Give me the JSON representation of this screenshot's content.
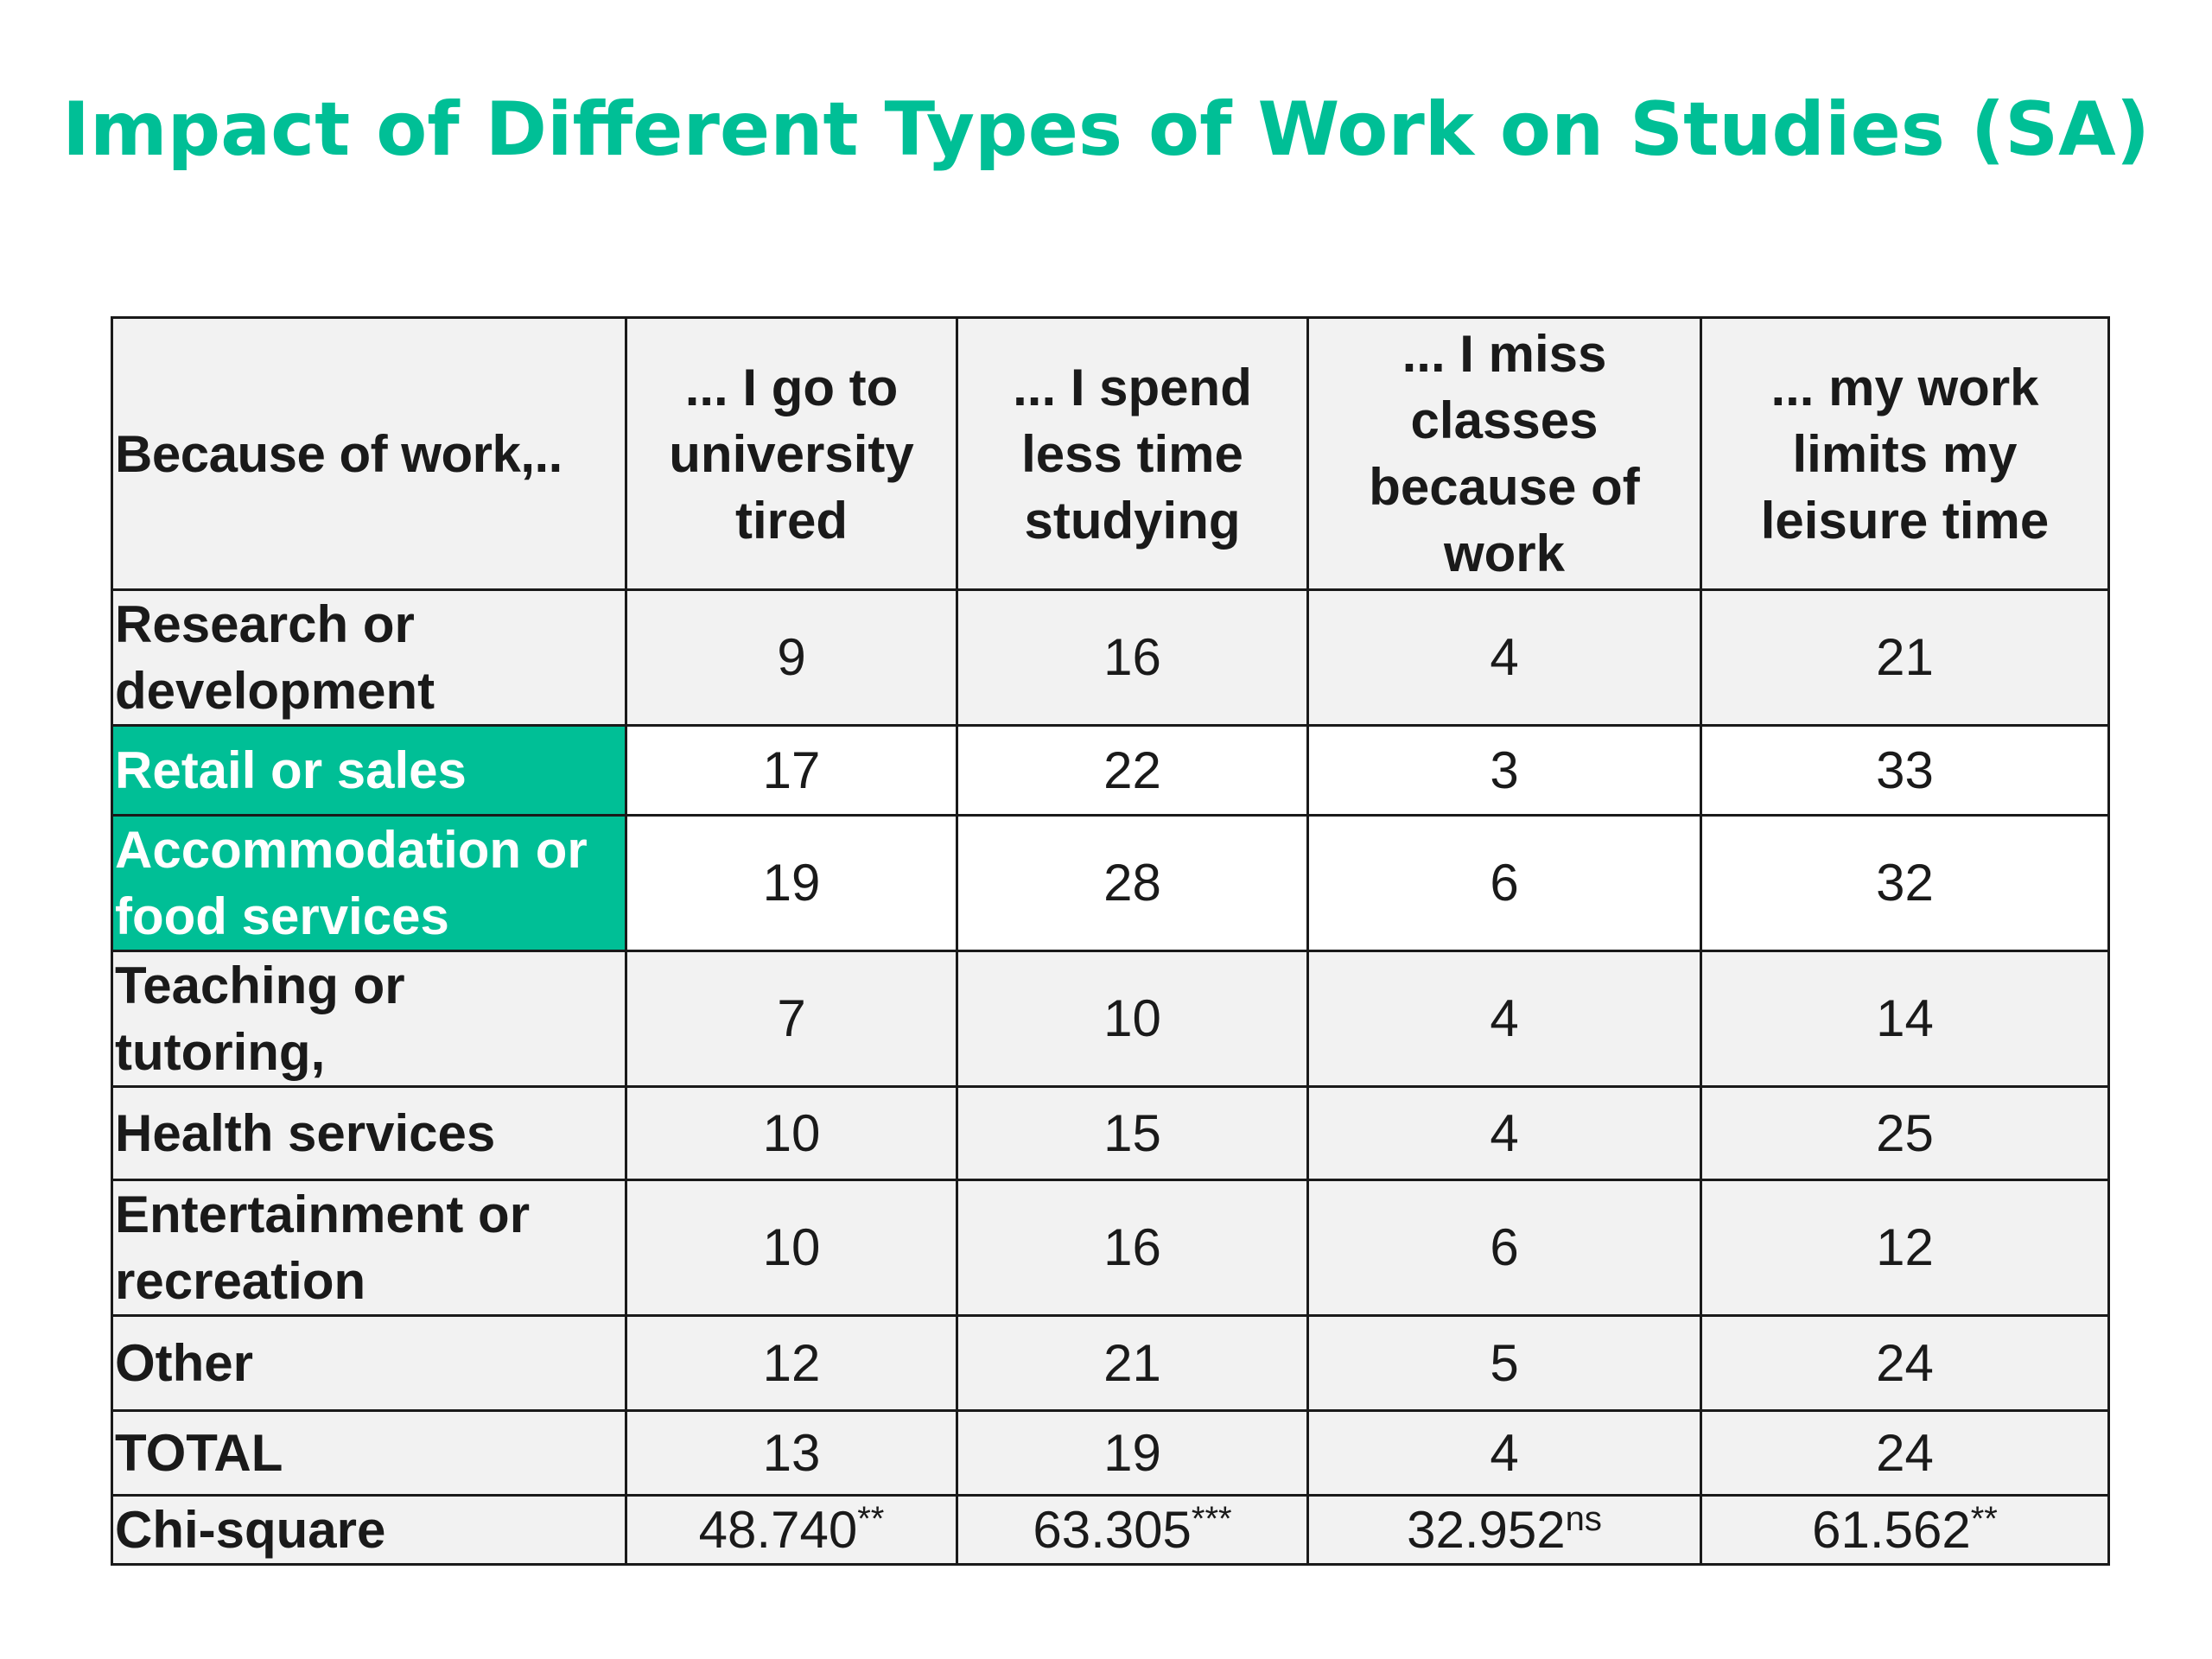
{
  "title": "Impact of Different Types of Work on Studies (SA)",
  "colors": {
    "title": "#00BF96",
    "highlight": "#00BF96",
    "text": "#1a1a1a",
    "cell_background": "#f2f2f2",
    "border": "#1a1a1a"
  },
  "table": {
    "corner_header": "Because of work,..",
    "columns": [
      "... I go to university tired",
      "... I spend less time studying",
      "... I miss classes because of work",
      "... my work limits my leisure time"
    ],
    "rows": [
      {
        "label": "Research or development",
        "values": [
          "9",
          "16",
          "4",
          "21"
        ],
        "highlighted": false
      },
      {
        "label": "Retail or sales",
        "values": [
          "17",
          "22",
          "3",
          "33"
        ],
        "highlighted": true
      },
      {
        "label": "Accommodation or food services",
        "values": [
          "19",
          "28",
          "6",
          "32"
        ],
        "highlighted": true
      },
      {
        "label": "Teaching or tutoring,",
        "values": [
          "7",
          "10",
          "4",
          "14"
        ],
        "highlighted": false
      },
      {
        "label": "Health services",
        "values": [
          "10",
          "15",
          "4",
          "25"
        ],
        "highlighted": false
      },
      {
        "label": "Entertainment or recreation",
        "values": [
          "10",
          "16",
          "6",
          "12"
        ],
        "highlighted": false
      },
      {
        "label": "Other",
        "values": [
          "12",
          "21",
          "5",
          "24"
        ],
        "highlighted": false
      },
      {
        "label": "TOTAL",
        "values": [
          "13",
          "19",
          "4",
          "24"
        ],
        "highlighted": false
      }
    ],
    "chi_square": {
      "label": "Chi-square",
      "values": [
        {
          "value": "48.740",
          "significance": "**"
        },
        {
          "value": "63.305",
          "significance": "***"
        },
        {
          "value": "32.952",
          "significance": "ns"
        },
        {
          "value": "61.562",
          "significance": "**"
        }
      ]
    }
  }
}
